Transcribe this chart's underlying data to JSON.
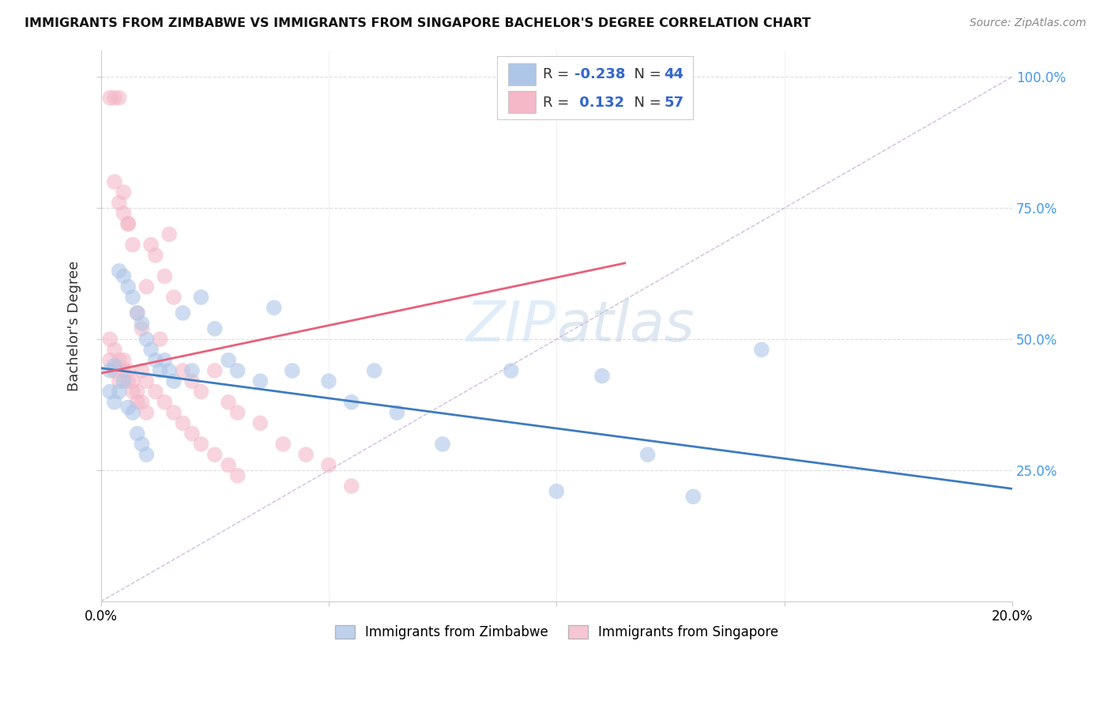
{
  "title": "IMMIGRANTS FROM ZIMBABWE VS IMMIGRANTS FROM SINGAPORE BACHELOR'S DEGREE CORRELATION CHART",
  "source": "Source: ZipAtlas.com",
  "ylabel": "Bachelor's Degree",
  "legend_blue_R": "-0.238",
  "legend_blue_N": "44",
  "legend_pink_R": "0.132",
  "legend_pink_N": "57",
  "blue_color": "#aec6e8",
  "pink_color": "#f4b8c8",
  "blue_line_color": "#3e7bbf",
  "pink_line_color": "#e8607a",
  "dashed_line_color": "#c8b8d8",
  "watermark_zip": "ZIP",
  "watermark_atlas": "atlas",
  "blue_scatter_x": [
    0.002,
    0.003,
    0.004,
    0.005,
    0.006,
    0.007,
    0.008,
    0.009,
    0.01,
    0.011,
    0.012,
    0.013,
    0.014,
    0.015,
    0.016,
    0.018,
    0.02,
    0.022,
    0.025,
    0.028,
    0.03,
    0.035,
    0.038,
    0.042,
    0.05,
    0.055,
    0.06,
    0.065,
    0.075,
    0.09,
    0.1,
    0.11,
    0.12,
    0.13,
    0.145,
    0.002,
    0.003,
    0.004,
    0.005,
    0.006,
    0.007,
    0.008,
    0.009,
    0.01
  ],
  "blue_scatter_y": [
    0.44,
    0.45,
    0.63,
    0.62,
    0.6,
    0.58,
    0.55,
    0.53,
    0.5,
    0.48,
    0.46,
    0.44,
    0.46,
    0.44,
    0.42,
    0.55,
    0.44,
    0.58,
    0.52,
    0.46,
    0.44,
    0.42,
    0.56,
    0.44,
    0.42,
    0.38,
    0.44,
    0.36,
    0.3,
    0.44,
    0.21,
    0.43,
    0.28,
    0.2,
    0.48,
    0.4,
    0.38,
    0.4,
    0.42,
    0.37,
    0.36,
    0.32,
    0.3,
    0.28
  ],
  "pink_scatter_x": [
    0.002,
    0.003,
    0.004,
    0.005,
    0.006,
    0.007,
    0.008,
    0.009,
    0.01,
    0.011,
    0.012,
    0.013,
    0.014,
    0.015,
    0.016,
    0.018,
    0.02,
    0.022,
    0.025,
    0.028,
    0.03,
    0.035,
    0.04,
    0.045,
    0.05,
    0.055,
    0.002,
    0.003,
    0.004,
    0.005,
    0.006,
    0.007,
    0.008,
    0.009,
    0.01,
    0.012,
    0.014,
    0.016,
    0.018,
    0.02,
    0.022,
    0.025,
    0.028,
    0.03,
    0.002,
    0.003,
    0.004,
    0.005,
    0.006,
    0.007,
    0.008,
    0.009,
    0.01,
    0.003,
    0.004,
    0.005,
    0.006
  ],
  "pink_scatter_y": [
    0.96,
    0.96,
    0.96,
    0.78,
    0.72,
    0.68,
    0.55,
    0.52,
    0.6,
    0.68,
    0.66,
    0.5,
    0.62,
    0.7,
    0.58,
    0.44,
    0.42,
    0.4,
    0.44,
    0.38,
    0.36,
    0.34,
    0.3,
    0.28,
    0.26,
    0.22,
    0.5,
    0.48,
    0.46,
    0.44,
    0.42,
    0.4,
    0.38,
    0.44,
    0.42,
    0.4,
    0.38,
    0.36,
    0.34,
    0.32,
    0.3,
    0.28,
    0.26,
    0.24,
    0.46,
    0.44,
    0.42,
    0.46,
    0.44,
    0.42,
    0.4,
    0.38,
    0.36,
    0.8,
    0.76,
    0.74,
    0.72
  ],
  "blue_line_x": [
    0.0,
    0.2
  ],
  "blue_line_y": [
    0.445,
    0.215
  ],
  "pink_line_x": [
    0.0,
    0.115
  ],
  "pink_line_y": [
    0.435,
    0.645
  ],
  "diag_line_x": [
    0.0,
    0.2
  ],
  "diag_line_y": [
    0.0,
    1.0
  ],
  "xlim": [
    0.0,
    0.2
  ],
  "ylim": [
    0.0,
    1.05
  ],
  "ytick_values": [
    0.25,
    0.5,
    0.75,
    1.0
  ],
  "ytick_labels": [
    "25.0%",
    "50.0%",
    "75.0%",
    "100.0%"
  ],
  "xtick_values": [
    0.0,
    0.05,
    0.1,
    0.15,
    0.2
  ],
  "xtick_labels": [
    "0.0%",
    "",
    "",
    "",
    "20.0%"
  ]
}
